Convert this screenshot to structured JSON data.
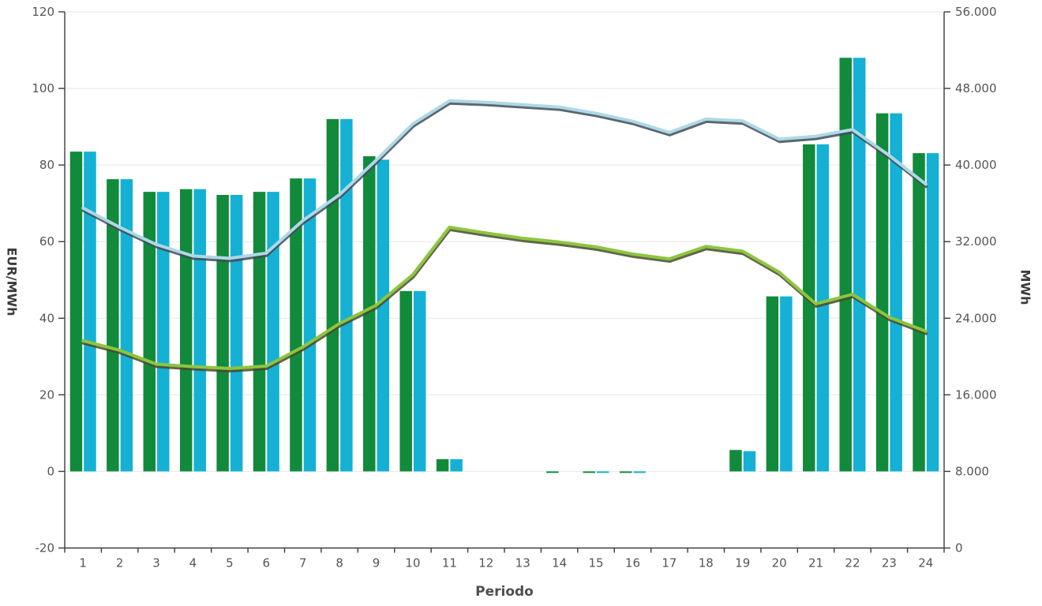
{
  "chart_data": {
    "type": "bar",
    "subtype": "combo-bar-line-dual-axis",
    "title": "",
    "xlabel": "Periodo",
    "x": [
      1,
      2,
      3,
      4,
      5,
      6,
      7,
      8,
      9,
      10,
      11,
      12,
      13,
      14,
      15,
      16,
      17,
      18,
      19,
      20,
      21,
      22,
      23,
      24
    ],
    "left_axis": {
      "label": "EUR/MWh",
      "min": -20,
      "max": 120,
      "ticks": [
        {
          "value": 120,
          "label": "120"
        },
        {
          "value": 100,
          "label": "100"
        },
        {
          "value": 80,
          "label": "80"
        },
        {
          "value": 60,
          "label": "60"
        },
        {
          "value": 40,
          "label": "40"
        },
        {
          "value": 20,
          "label": "20"
        },
        {
          "value": 0,
          "label": "0"
        },
        {
          "value": -20,
          "label": "-20"
        }
      ]
    },
    "right_axis": {
      "label": "MWh",
      "min": 0,
      "max": 56000,
      "ticks": [
        {
          "value": 56000,
          "label": "56.000"
        },
        {
          "value": 48000,
          "label": "48.000"
        },
        {
          "value": 40000,
          "label": "40.000"
        },
        {
          "value": 32000,
          "label": "32.000"
        },
        {
          "value": 24000,
          "label": "24.000"
        },
        {
          "value": 16000,
          "label": "16.000"
        },
        {
          "value": 8000,
          "label": "8.000"
        },
        {
          "value": 0,
          "label": "0"
        }
      ]
    },
    "grid": true,
    "legend": false,
    "series": [
      {
        "name": "price-bars-green",
        "type": "bar",
        "axis": "left",
        "color": "#128A3C",
        "values": [
          83.5,
          76.3,
          73,
          73.7,
          72.2,
          73,
          76.5,
          92,
          82.3,
          47.1,
          3.2,
          0,
          0,
          -0.4,
          -0.4,
          -0.4,
          0,
          0,
          5.6,
          45.7,
          85.4,
          108,
          93.5,
          83.1
        ]
      },
      {
        "name": "price-bars-cyan",
        "type": "bar",
        "axis": "left",
        "color": "#14B1D4",
        "values": [
          83.5,
          76.3,
          73,
          73.7,
          72.2,
          73,
          76.5,
          92,
          81.4,
          47.1,
          3.2,
          0,
          0,
          0,
          -0.4,
          -0.4,
          0,
          0,
          5.3,
          45.7,
          85.4,
          108,
          93.5,
          83.1
        ]
      },
      {
        "name": "energy-line-light-blue",
        "type": "line",
        "axis": "right",
        "color": "#AED8E8",
        "shadow_color": "#3F4C55",
        "values": [
          35500,
          33500,
          31700,
          30500,
          30250,
          30800,
          34200,
          36900,
          40500,
          44300,
          46700,
          46550,
          46300,
          46050,
          45400,
          44570,
          43400,
          44800,
          44600,
          42700,
          43000,
          43700,
          41000,
          38000
        ]
      },
      {
        "name": "energy-line-yellow-green",
        "type": "line",
        "axis": "right",
        "color": "#8CC63F",
        "shadow_color": "#49492D",
        "values": [
          21650,
          20650,
          19200,
          18950,
          18750,
          19000,
          21000,
          23450,
          25350,
          28550,
          33500,
          32900,
          32350,
          31950,
          31450,
          30700,
          30200,
          31500,
          31000,
          28800,
          25500,
          26500,
          24100,
          22650
        ]
      }
    ]
  }
}
